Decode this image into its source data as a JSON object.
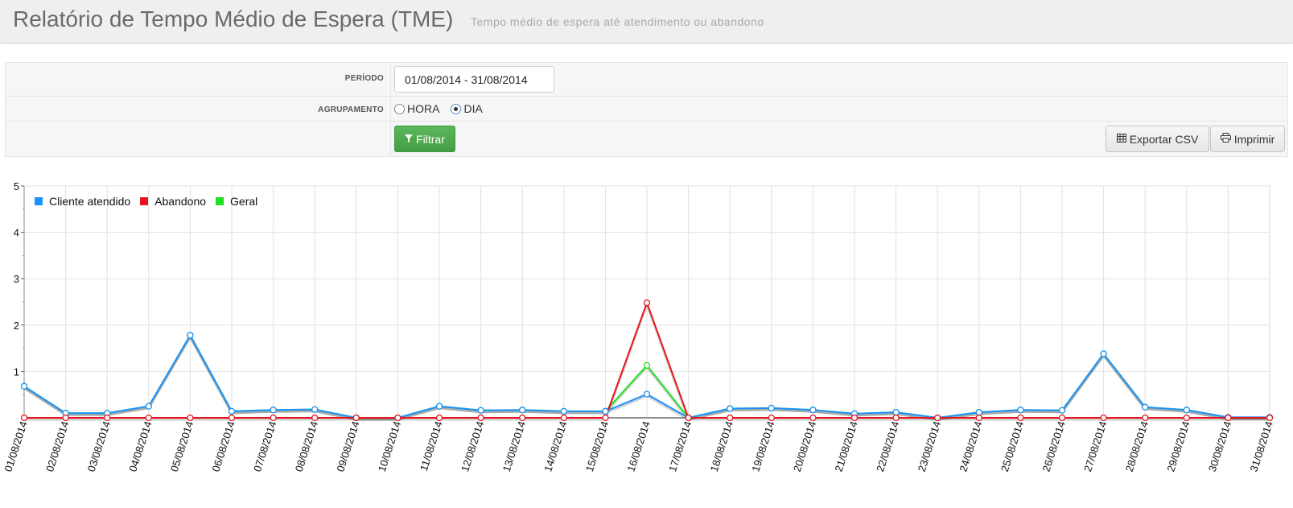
{
  "header": {
    "title": "Relatório de Tempo Médio de Espera (TME)",
    "subtitle": "Tempo médio de espera até atendimento ou abandono"
  },
  "filters": {
    "periodo_label": "PERÍODO",
    "periodo_value": "01/08/2014 - 31/08/2014",
    "agrupamento_label": "AGRUPAMENTO",
    "options": [
      {
        "label": "HORA",
        "checked": false
      },
      {
        "label": "DIA",
        "checked": true
      }
    ],
    "filter_button": "Filtrar",
    "export_button": "Exportar CSV",
    "print_button": "Imprimir"
  },
  "chart_data": {
    "type": "line",
    "ylim": [
      0,
      5
    ],
    "yticks": [
      "5",
      "4",
      "3",
      "2",
      "1"
    ],
    "grid": true,
    "legend_position": "top-left",
    "x": [
      "01/08/2014",
      "02/08/2014",
      "03/08/2014",
      "04/08/2014",
      "05/08/2014",
      "06/08/2014",
      "07/08/2014",
      "08/08/2014",
      "09/08/2014",
      "10/08/2014",
      "11/08/2014",
      "12/08/2014",
      "13/08/2014",
      "14/08/2014",
      "15/08/2014",
      "16/08/2014",
      "17/08/2014",
      "18/08/2014",
      "19/08/2014",
      "20/08/2014",
      "21/08/2014",
      "22/08/2014",
      "23/08/2014",
      "24/08/2014",
      "25/08/2014",
      "26/08/2014",
      "27/08/2014",
      "28/08/2014",
      "29/08/2014",
      "30/08/2014",
      "31/08/2014"
    ],
    "series": [
      {
        "name": "Cliente atendido",
        "color": "#1e90ff",
        "values": [
          0.68,
          0.1,
          0.1,
          0.25,
          1.78,
          0.14,
          0.17,
          0.18,
          0.0,
          0.0,
          0.25,
          0.16,
          0.17,
          0.14,
          0.14,
          0.51,
          0.0,
          0.2,
          0.21,
          0.17,
          0.09,
          0.12,
          0.0,
          0.12,
          0.17,
          0.16,
          1.38,
          0.23,
          0.17,
          0.01,
          0.01
        ]
      },
      {
        "name": "Abandono",
        "color": "#e8141b",
        "values": [
          0,
          0,
          0,
          0,
          0,
          0,
          0,
          0,
          0,
          0,
          0,
          0,
          0,
          0,
          0,
          2.48,
          0,
          0,
          0,
          0,
          0,
          0,
          0,
          0,
          0,
          0,
          0,
          0,
          0,
          0,
          0
        ]
      },
      {
        "name": "Geral",
        "color": "#22e022",
        "values": [
          0.68,
          0.1,
          0.1,
          0.25,
          1.78,
          0.14,
          0.17,
          0.18,
          0.0,
          0.0,
          0.25,
          0.16,
          0.17,
          0.14,
          0.14,
          1.13,
          0.0,
          0.2,
          0.21,
          0.17,
          0.09,
          0.12,
          0.0,
          0.12,
          0.17,
          0.16,
          1.38,
          0.23,
          0.17,
          0.01,
          0.01
        ]
      }
    ]
  }
}
